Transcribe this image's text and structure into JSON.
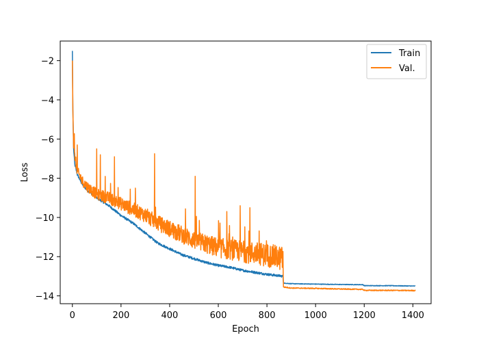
{
  "chart_data": {
    "type": "line",
    "title": "",
    "xlabel": "Epoch",
    "ylabel": "Loss",
    "xlim": [
      -50,
      1475
    ],
    "ylim": [
      -14.4,
      -1.0
    ],
    "xticks": [
      0,
      200,
      400,
      600,
      800,
      1000,
      1200,
      1400
    ],
    "xtick_labels": [
      "0",
      "200",
      "400",
      "600",
      "800",
      "1000",
      "1200",
      "1400"
    ],
    "yticks": [
      -2,
      -4,
      -6,
      -8,
      -10,
      -12,
      -14
    ],
    "ytick_labels": [
      "−2",
      "−4",
      "−6",
      "−8",
      "−10",
      "−12",
      "−14"
    ],
    "grid": false,
    "legend_position": "top-right",
    "series": [
      {
        "name": "Train",
        "color": "#1f77b4",
        "x": [
          0,
          2,
          5,
          10,
          20,
          40,
          60,
          100,
          150,
          200,
          250,
          300,
          350,
          400,
          450,
          500,
          550,
          600,
          650,
          700,
          750,
          800,
          866,
          868,
          900,
          1000,
          1100,
          1195,
          1200,
          1300,
          1410
        ],
        "y": [
          -1.5,
          -4.5,
          -6.5,
          -7.3,
          -7.8,
          -8.3,
          -8.6,
          -9.0,
          -9.4,
          -9.9,
          -10.3,
          -10.8,
          -11.3,
          -11.6,
          -11.9,
          -12.1,
          -12.3,
          -12.45,
          -12.55,
          -12.7,
          -12.8,
          -12.9,
          -13.0,
          -13.35,
          -13.38,
          -13.4,
          -13.42,
          -13.43,
          -13.48,
          -13.48,
          -13.5
        ]
      },
      {
        "name": "Val.",
        "color": "#ff7f0e",
        "x": [
          0,
          2,
          5,
          10,
          20,
          40,
          60,
          100,
          150,
          200,
          250,
          300,
          350,
          400,
          450,
          500,
          550,
          600,
          650,
          700,
          750,
          800,
          866,
          868,
          900,
          1000,
          1100,
          1195,
          1200,
          1300,
          1410
        ],
        "y": [
          -2.0,
          -4.5,
          -6.4,
          -7.0,
          -7.7,
          -8.2,
          -8.5,
          -8.9,
          -9.1,
          -9.4,
          -9.7,
          -10.0,
          -10.4,
          -10.7,
          -11.0,
          -11.3,
          -11.5,
          -11.7,
          -11.8,
          -11.9,
          -12.0,
          -12.1,
          -12.3,
          -13.55,
          -13.6,
          -13.62,
          -13.65,
          -13.67,
          -13.72,
          -13.72,
          -13.73
        ],
        "notable_spikes": [
          {
            "x": 20,
            "y": -6.3
          },
          {
            "x": 100,
            "y": -6.5
          },
          {
            "x": 115,
            "y": -6.8
          },
          {
            "x": 173,
            "y": -6.9
          },
          {
            "x": 338,
            "y": -6.75
          },
          {
            "x": 505,
            "y": -7.9
          },
          {
            "x": 635,
            "y": -9.7
          },
          {
            "x": 690,
            "y": -9.4
          },
          {
            "x": 730,
            "y": -9.5
          }
        ]
      }
    ]
  }
}
